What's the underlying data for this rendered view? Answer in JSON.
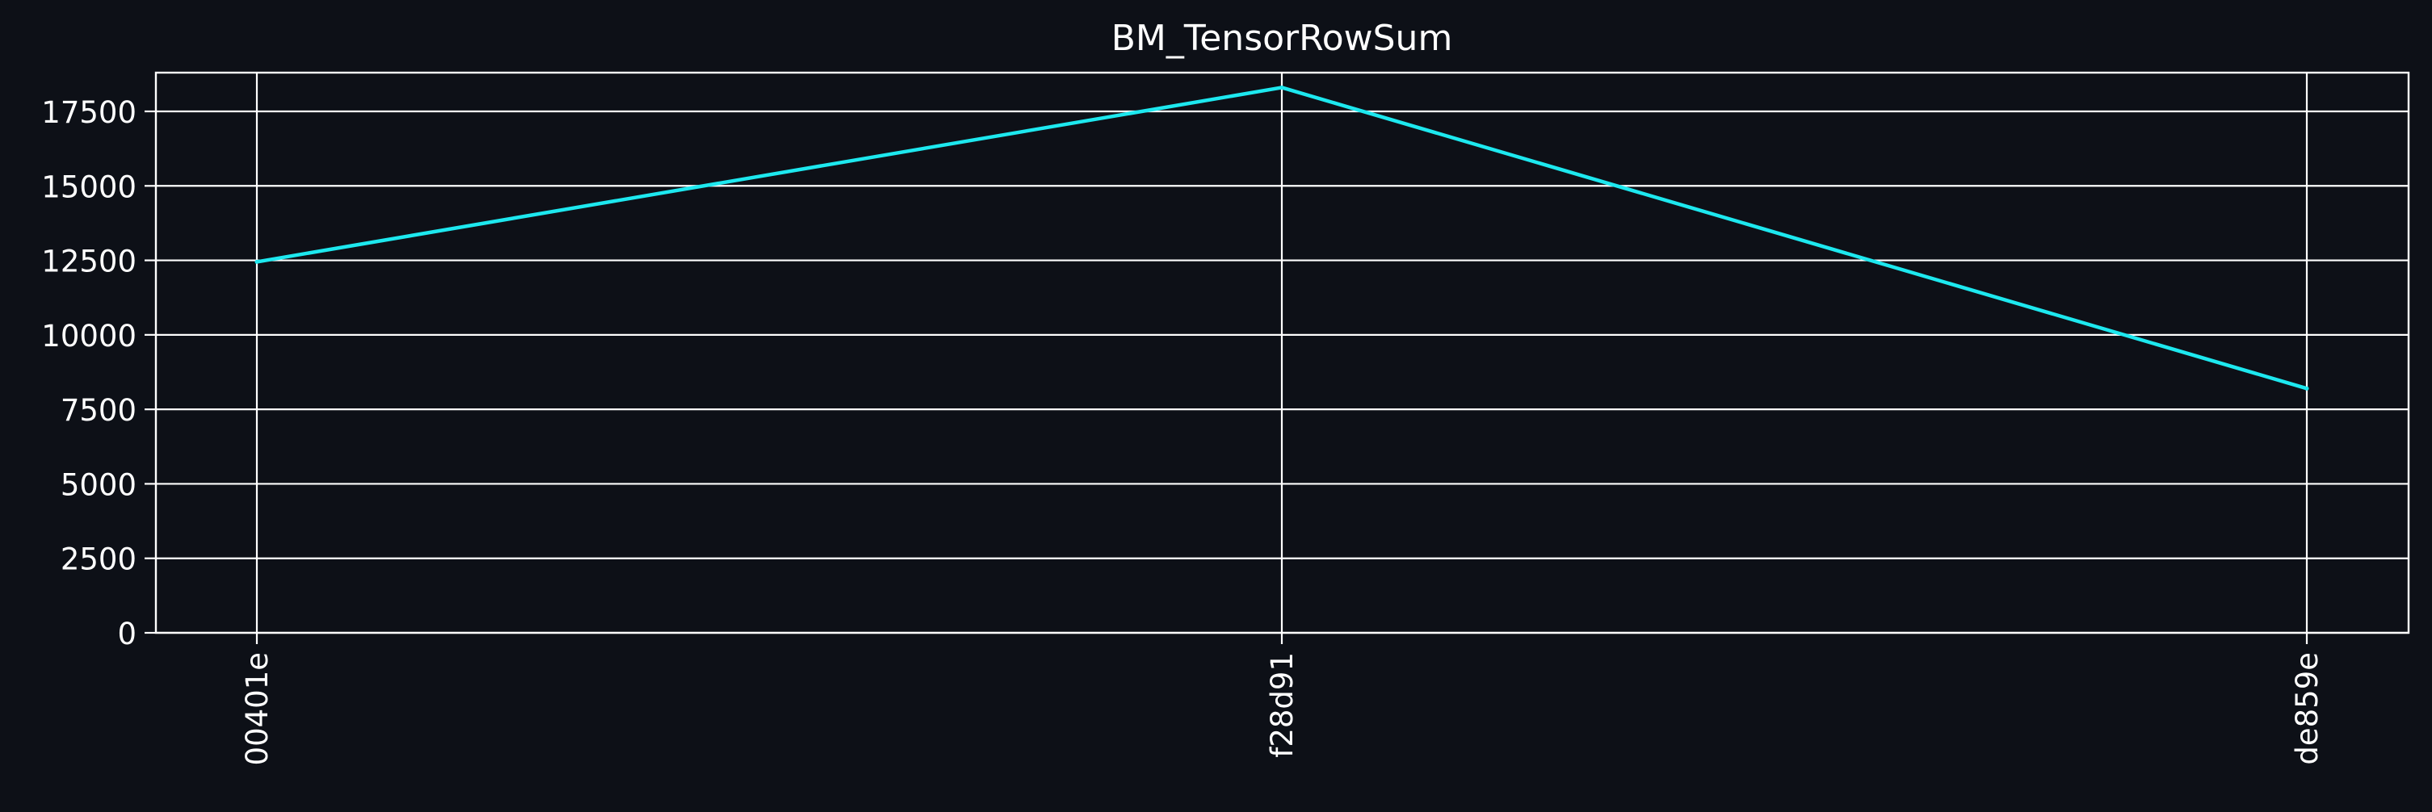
{
  "colors": {
    "background": "#0d1017",
    "axes": "#ffffff",
    "grid": "#ffffff",
    "line": "#1de8ef",
    "text": "#ffffff"
  },
  "chart_data": {
    "type": "line",
    "title": "BM_TensorRowSum",
    "xlabel": "",
    "ylabel": "",
    "categories": [
      "00401e",
      "f28d91",
      "de859e"
    ],
    "series": [
      {
        "values": [
          12450,
          18300,
          8200
        ]
      }
    ],
    "ylim": [
      0,
      18800
    ],
    "yticks": [
      0,
      2500,
      5000,
      7500,
      10000,
      12500,
      15000,
      17500
    ],
    "ytick_labels": [
      "0",
      "2500",
      "5000",
      "7500",
      "10000",
      "12500",
      "15000",
      "17500"
    ],
    "grid": true,
    "legend": "none"
  }
}
